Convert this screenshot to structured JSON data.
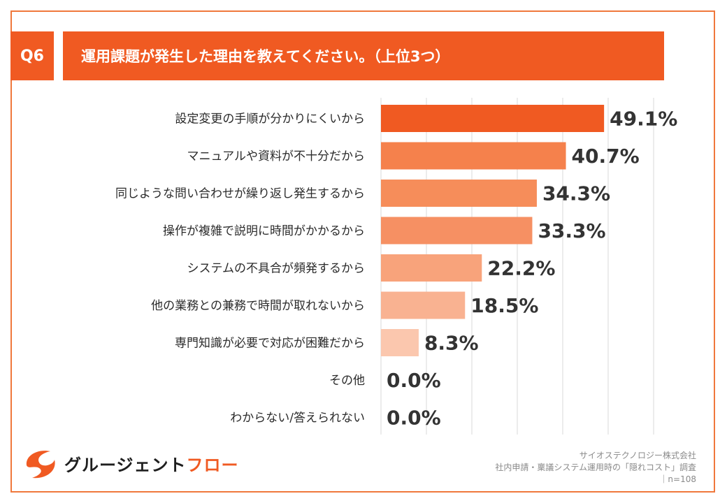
{
  "header": {
    "badge": "Q6",
    "title": "運用課題が発生した理由を教えてください。（上位3つ）"
  },
  "chart_data": {
    "type": "bar",
    "orientation": "horizontal",
    "categories": [
      "設定変更の手順が分かりにくいから",
      "マニュアルや資料が不十分だから",
      "同じような問い合わせが繰り返し発生するから",
      "操作が複雑で説明に時間がかかるから",
      "システムの不具合が頻発するから",
      "他の業務との兼務で時間が取れないから",
      "専門知識が必要で対応が困難だから",
      "その他",
      "わからない/答えられない"
    ],
    "values": [
      49.1,
      40.7,
      34.3,
      33.3,
      22.2,
      18.5,
      8.3,
      0.0,
      0.0
    ],
    "value_labels": [
      "49.1%",
      "40.7%",
      "34.3%",
      "33.3%",
      "22.2%",
      "18.5%",
      "8.3%",
      "0.0%",
      "0.0%"
    ],
    "xlim": [
      0,
      60
    ],
    "grid": true,
    "bar_colors": [
      "#f05a22",
      "#f5814c",
      "#f68d5a",
      "#f69063",
      "#f8a37b",
      "#f9b291",
      "#fbc7ae",
      "#fbd2bd",
      "#fbd2bd"
    ]
  },
  "logo": {
    "text_main": "グルージェント",
    "text_accent": "フロー",
    "accent_color": "#f05a22"
  },
  "source": {
    "line1": "サイオステクノロジー株式会社",
    "line2": "社内申請・稟議システム運用時の「隠れコスト」調査",
    "line3": "｜n=108"
  }
}
